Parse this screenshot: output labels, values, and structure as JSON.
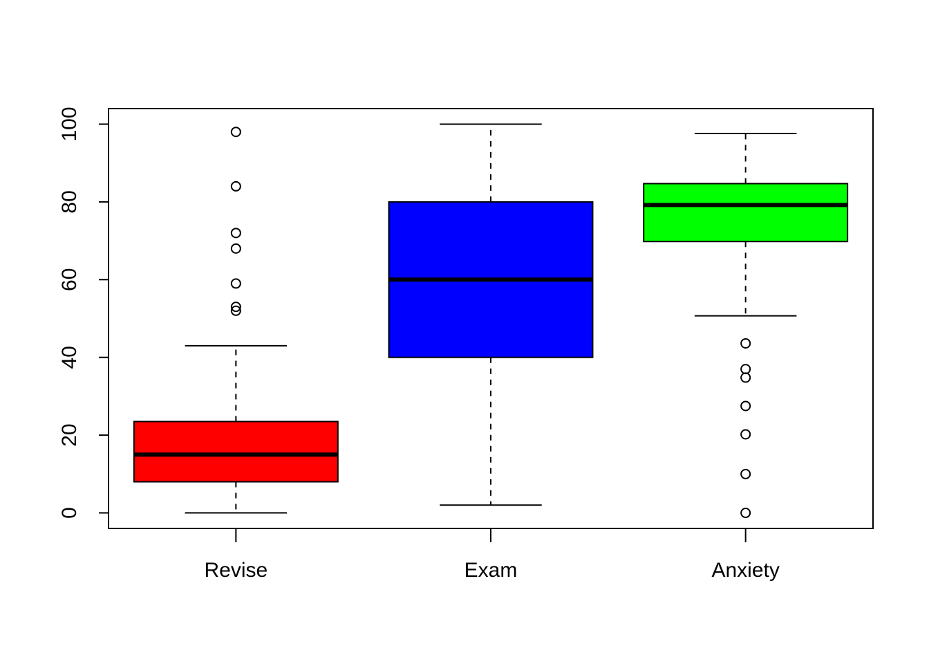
{
  "chart_data": {
    "type": "boxplot",
    "title": "",
    "xlabel": "",
    "ylabel": "",
    "ylim": [
      -4,
      104
    ],
    "y_ticks": [
      0,
      20,
      40,
      60,
      80,
      100
    ],
    "y_tick_labels": [
      "0",
      "20",
      "40",
      "60",
      "80",
      "100"
    ],
    "grid": false,
    "legend": "none",
    "categories": [
      "Revise",
      "Exam",
      "Anxiety"
    ],
    "boxes": [
      {
        "name": "Revise",
        "color": "#ff0000",
        "whisker_low": 0,
        "q1": 8,
        "median": 15,
        "q3": 23.5,
        "whisker_high": 43,
        "outliers": [
          52,
          53,
          59,
          68,
          72,
          84,
          98
        ]
      },
      {
        "name": "Exam",
        "color": "#0000ff",
        "whisker_low": 2,
        "q1": 40,
        "median": 60,
        "q3": 80,
        "whisker_high": 100,
        "outliers": []
      },
      {
        "name": "Anxiety",
        "color": "#00ff00",
        "whisker_low": 50.7,
        "q1": 69.8,
        "median": 79.2,
        "q3": 84.7,
        "whisker_high": 97.6,
        "outliers": [
          0,
          10,
          20.2,
          27.5,
          34.8,
          37,
          43.6
        ]
      }
    ]
  }
}
